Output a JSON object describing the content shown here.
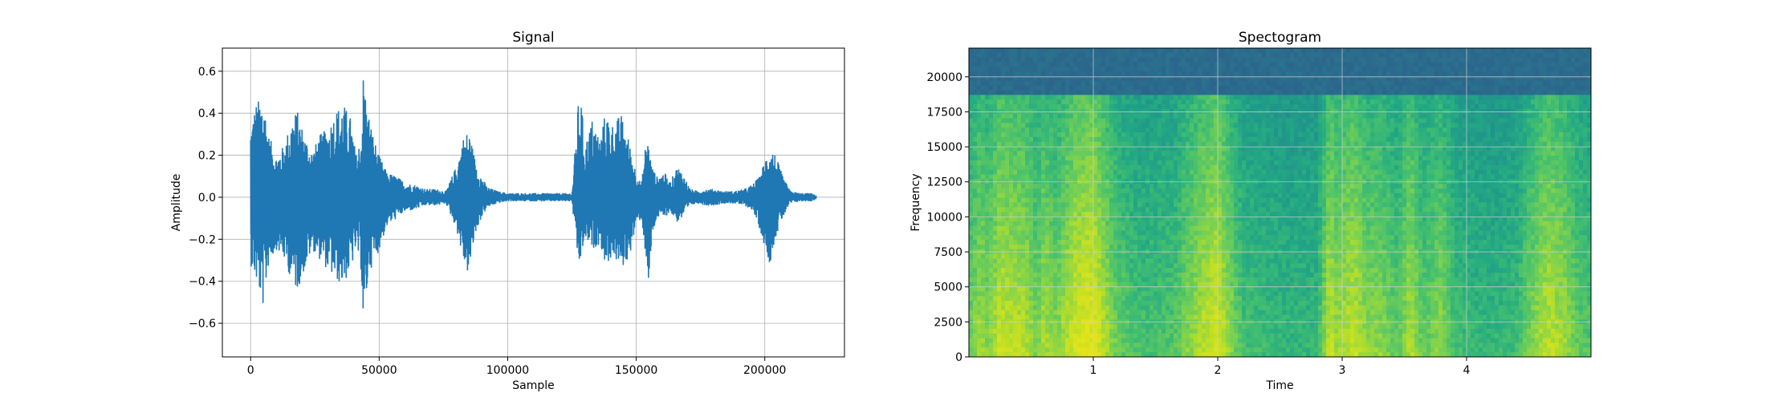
{
  "chart_data": [
    {
      "type": "line",
      "title": "Signal",
      "xlabel": "Sample",
      "ylabel": "Amplitude",
      "xlim": [
        -11000,
        231000
      ],
      "ylim": [
        -0.76,
        0.71
      ],
      "grid": true,
      "line_color": "#1f77b4",
      "x_ticks": [
        0,
        50000,
        100000,
        150000,
        200000
      ],
      "x_tick_labels": [
        "0",
        "50000",
        "100000",
        "150000",
        "200000"
      ],
      "y_ticks": [
        -0.6,
        -0.4,
        -0.2,
        0.0,
        0.2,
        0.4,
        0.6
      ],
      "y_tick_labels": [
        "−0.6",
        "−0.4",
        "−0.2",
        "0.0",
        "0.2",
        "0.4",
        "0.6"
      ],
      "envelope": {
        "x": [
          0,
          2000,
          5000,
          7000,
          10000,
          13000,
          16000,
          18000,
          21000,
          24000,
          27000,
          30000,
          33000,
          36000,
          39000,
          41000,
          43000,
          44000,
          45000,
          46000,
          48000,
          50000,
          53000,
          57000,
          60000,
          64000,
          68000,
          72000,
          76000,
          80000,
          83000,
          85000,
          87000,
          89000,
          92000,
          96000,
          100000,
          105000,
          110000,
          115000,
          120000,
          125000,
          127500,
          128500,
          130000,
          133000,
          136000,
          138000,
          141000,
          144000,
          147000,
          150000,
          152000,
          154000,
          155000,
          156000,
          158000,
          161000,
          163000,
          166000,
          168000,
          171000,
          174000,
          177000,
          180000,
          184000,
          188000,
          192000,
          195000,
          198000,
          200000,
          202000,
          204000,
          207000,
          210000,
          214000,
          218000,
          220000
        ],
        "upper": [
          0.35,
          0.45,
          0.49,
          0.3,
          0.2,
          0.25,
          0.38,
          0.42,
          0.3,
          0.22,
          0.3,
          0.33,
          0.42,
          0.45,
          0.38,
          0.2,
          0.3,
          0.65,
          0.45,
          0.4,
          0.28,
          0.2,
          0.12,
          0.1,
          0.07,
          0.06,
          0.04,
          0.04,
          0.03,
          0.15,
          0.3,
          0.32,
          0.2,
          0.12,
          0.05,
          0.03,
          0.02,
          0.02,
          0.02,
          0.02,
          0.02,
          0.02,
          0.46,
          0.48,
          0.25,
          0.38,
          0.28,
          0.41,
          0.35,
          0.4,
          0.28,
          0.12,
          0.06,
          0.3,
          0.25,
          0.15,
          0.1,
          0.12,
          0.07,
          0.15,
          0.12,
          0.04,
          0.03,
          0.04,
          0.04,
          0.03,
          0.03,
          0.04,
          0.06,
          0.1,
          0.18,
          0.25,
          0.21,
          0.1,
          0.03,
          0.02,
          0.02,
          0.01
        ],
        "lower": [
          -0.32,
          -0.4,
          -0.53,
          -0.32,
          -0.25,
          -0.3,
          -0.4,
          -0.45,
          -0.35,
          -0.25,
          -0.3,
          -0.35,
          -0.4,
          -0.42,
          -0.35,
          -0.25,
          -0.35,
          -0.7,
          -0.5,
          -0.35,
          -0.32,
          -0.25,
          -0.14,
          -0.1,
          -0.07,
          -0.06,
          -0.04,
          -0.04,
          -0.03,
          -0.15,
          -0.32,
          -0.38,
          -0.2,
          -0.12,
          -0.05,
          -0.03,
          -0.02,
          -0.02,
          -0.02,
          -0.02,
          -0.02,
          -0.02,
          -0.35,
          -0.3,
          -0.2,
          -0.25,
          -0.22,
          -0.33,
          -0.28,
          -0.35,
          -0.3,
          -0.14,
          -0.1,
          -0.32,
          -0.5,
          -0.2,
          -0.1,
          -0.1,
          -0.07,
          -0.12,
          -0.1,
          -0.04,
          -0.03,
          -0.04,
          -0.04,
          -0.03,
          -0.03,
          -0.04,
          -0.06,
          -0.15,
          -0.24,
          -0.32,
          -0.2,
          -0.1,
          -0.03,
          -0.02,
          -0.02,
          -0.01
        ]
      }
    },
    {
      "type": "heatmap",
      "title": "Spectogram",
      "xlabel": "Time",
      "ylabel": "Frequency",
      "xlim": [
        0,
        5.0
      ],
      "ylim": [
        0,
        22050
      ],
      "grid": true,
      "x_ticks": [
        1,
        2,
        3,
        4
      ],
      "x_tick_labels": [
        "1",
        "2",
        "3",
        "4"
      ],
      "y_ticks": [
        0,
        2500,
        5000,
        7500,
        10000,
        12500,
        15000,
        17500,
        20000
      ],
      "y_tick_labels": [
        "0",
        "2500",
        "5000",
        "7500",
        "10000",
        "12500",
        "15000",
        "17500",
        "20000"
      ],
      "cutoff_frequency": 18800,
      "colormap": [
        "#2c5f8c",
        "#2a788e",
        "#21918c",
        "#22a884",
        "#44bf70",
        "#7ad151",
        "#bddf26",
        "#e5e419"
      ],
      "time_energy": {
        "t": [
          0.0,
          0.1,
          0.15,
          0.25,
          0.3,
          0.45,
          0.55,
          0.6,
          0.7,
          0.85,
          1.0,
          1.1,
          1.2,
          1.35,
          1.5,
          1.65,
          1.75,
          1.9,
          2.0,
          2.1,
          2.2,
          2.4,
          2.6,
          2.8,
          2.9,
          2.95,
          3.1,
          3.2,
          3.3,
          3.45,
          3.55,
          3.65,
          3.8,
          3.9,
          4.0,
          4.2,
          4.4,
          4.5,
          4.65,
          4.8,
          4.9,
          5.0
        ],
        "energy": [
          0.45,
          0.7,
          0.55,
          0.85,
          0.8,
          0.75,
          0.5,
          0.72,
          0.55,
          0.9,
          1.0,
          0.7,
          0.45,
          0.3,
          0.3,
          0.35,
          0.55,
          0.8,
          0.92,
          0.6,
          0.3,
          0.22,
          0.18,
          0.2,
          0.85,
          0.65,
          0.82,
          0.6,
          0.6,
          0.4,
          0.75,
          0.4,
          0.6,
          0.3,
          0.22,
          0.18,
          0.25,
          0.5,
          0.8,
          0.65,
          0.4,
          0.35
        ]
      }
    }
  ]
}
